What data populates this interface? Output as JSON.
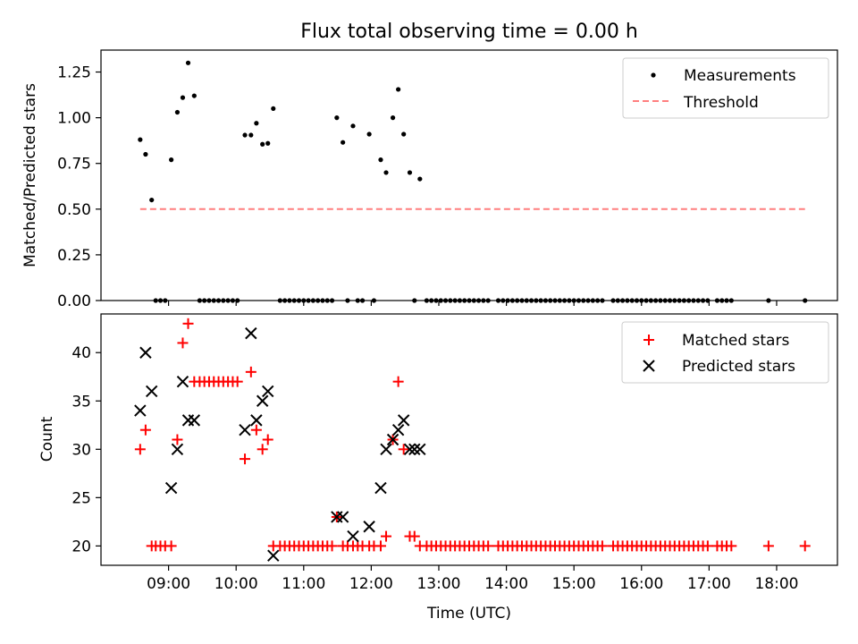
{
  "title": "Flux total observing time = 0.00 h",
  "chart_data": [
    {
      "type": "scatter",
      "panel": "top",
      "ylabel": "Matched/Predicted stars",
      "xlabel": "",
      "ylim": [
        0,
        1.37
      ],
      "yticks": [
        0,
        0.25,
        0.5,
        0.75,
        1.0,
        1.25
      ],
      "ytick_labels": [
        "0.00",
        "0.25",
        "0.50",
        "0.75",
        "1.00",
        "1.25"
      ],
      "legend_position": "top-right",
      "grid": false,
      "series": [
        {
          "name": "Measurements",
          "marker": "dot",
          "color": "#000000",
          "points": [
            [
              8.58,
              0.88
            ],
            [
              8.66,
              0.8
            ],
            [
              8.75,
              0.55
            ],
            [
              8.81,
              0
            ],
            [
              8.88,
              0
            ],
            [
              8.95,
              0
            ],
            [
              9.04,
              0.77
            ],
            [
              9.13,
              1.03
            ],
            [
              9.21,
              1.11
            ],
            [
              9.29,
              1.3
            ],
            [
              9.38,
              1.12
            ],
            [
              9.46,
              0
            ],
            [
              9.53,
              0
            ],
            [
              9.6,
              0
            ],
            [
              9.67,
              0
            ],
            [
              9.74,
              0
            ],
            [
              9.81,
              0
            ],
            [
              9.88,
              0
            ],
            [
              9.95,
              0
            ],
            [
              10.02,
              0
            ],
            [
              10.13,
              0.905
            ],
            [
              10.22,
              0.905
            ],
            [
              10.3,
              0.97
            ],
            [
              10.39,
              0.855
            ],
            [
              10.47,
              0.86
            ],
            [
              10.55,
              1.05
            ],
            [
              10.65,
              0
            ],
            [
              10.72,
              0
            ],
            [
              10.79,
              0
            ],
            [
              10.86,
              0
            ],
            [
              10.93,
              0
            ],
            [
              11.0,
              0
            ],
            [
              11.07,
              0
            ],
            [
              11.14,
              0
            ],
            [
              11.21,
              0
            ],
            [
              11.28,
              0
            ],
            [
              11.35,
              0
            ],
            [
              11.42,
              0
            ],
            [
              11.49,
              1.0
            ],
            [
              11.58,
              0.865
            ],
            [
              11.65,
              0
            ],
            [
              11.73,
              0.955
            ],
            [
              11.8,
              0
            ],
            [
              11.87,
              0
            ],
            [
              11.97,
              0.91
            ],
            [
              12.04,
              0
            ],
            [
              12.14,
              0.77
            ],
            [
              12.22,
              0.7
            ],
            [
              12.32,
              1.0
            ],
            [
              12.4,
              1.155
            ],
            [
              12.48,
              0.91
            ],
            [
              12.57,
              0.7
            ],
            [
              12.64,
              0
            ],
            [
              12.72,
              0.665
            ],
            [
              12.82,
              0
            ],
            [
              12.89,
              0
            ],
            [
              12.96,
              0
            ],
            [
              13.03,
              0
            ],
            [
              13.1,
              0
            ],
            [
              13.17,
              0
            ],
            [
              13.24,
              0
            ],
            [
              13.31,
              0
            ],
            [
              13.38,
              0
            ],
            [
              13.45,
              0
            ],
            [
              13.52,
              0
            ],
            [
              13.59,
              0
            ],
            [
              13.66,
              0
            ],
            [
              13.73,
              0
            ],
            [
              13.88,
              0
            ],
            [
              13.95,
              0
            ],
            [
              14.02,
              0
            ],
            [
              14.09,
              0
            ],
            [
              14.16,
              0
            ],
            [
              14.23,
              0
            ],
            [
              14.3,
              0
            ],
            [
              14.37,
              0
            ],
            [
              14.44,
              0
            ],
            [
              14.51,
              0
            ],
            [
              14.58,
              0
            ],
            [
              14.65,
              0
            ],
            [
              14.72,
              0
            ],
            [
              14.79,
              0
            ],
            [
              14.86,
              0
            ],
            [
              14.93,
              0
            ],
            [
              15.0,
              0
            ],
            [
              15.07,
              0
            ],
            [
              15.14,
              0
            ],
            [
              15.21,
              0
            ],
            [
              15.28,
              0
            ],
            [
              15.35,
              0
            ],
            [
              15.42,
              0
            ],
            [
              15.58,
              0
            ],
            [
              15.65,
              0
            ],
            [
              15.72,
              0
            ],
            [
              15.79,
              0
            ],
            [
              15.86,
              0
            ],
            [
              15.93,
              0
            ],
            [
              16.0,
              0
            ],
            [
              16.07,
              0
            ],
            [
              16.14,
              0
            ],
            [
              16.21,
              0
            ],
            [
              16.28,
              0
            ],
            [
              16.35,
              0
            ],
            [
              16.42,
              0
            ],
            [
              16.49,
              0
            ],
            [
              16.56,
              0
            ],
            [
              16.63,
              0
            ],
            [
              16.7,
              0
            ],
            [
              16.77,
              0
            ],
            [
              16.84,
              0
            ],
            [
              16.91,
              0
            ],
            [
              16.98,
              0
            ],
            [
              17.12,
              0
            ],
            [
              17.19,
              0
            ],
            [
              17.26,
              0
            ],
            [
              17.33,
              0
            ],
            [
              17.88,
              0
            ],
            [
              18.42,
              0
            ]
          ]
        },
        {
          "name": "Threshold",
          "style": "dashed-line",
          "color": "#ff7f7f",
          "points": [
            [
              8.58,
              0.5
            ],
            [
              18.42,
              0.5
            ]
          ]
        }
      ]
    },
    {
      "type": "scatter",
      "panel": "bottom",
      "ylabel": "Count",
      "xlabel": "Time (UTC)",
      "xlim": [
        8.0,
        18.9
      ],
      "ylim": [
        18,
        44
      ],
      "yticks": [
        20,
        25,
        30,
        35,
        40
      ],
      "xticks": [
        9,
        10,
        11,
        12,
        13,
        14,
        15,
        16,
        17,
        18
      ],
      "xtick_labels": [
        "09:00",
        "10:00",
        "11:00",
        "12:00",
        "13:00",
        "14:00",
        "15:00",
        "16:00",
        "17:00",
        "18:00"
      ],
      "legend_position": "top-right",
      "grid": false,
      "series": [
        {
          "name": "Matched stars",
          "marker": "plus",
          "color": "#ff0000",
          "points": [
            [
              8.58,
              30
            ],
            [
              8.66,
              32
            ],
            [
              8.75,
              20
            ],
            [
              8.81,
              20
            ],
            [
              8.88,
              20
            ],
            [
              8.95,
              20
            ],
            [
              9.04,
              20
            ],
            [
              9.13,
              31
            ],
            [
              9.21,
              41
            ],
            [
              9.29,
              43
            ],
            [
              9.38,
              37
            ],
            [
              9.46,
              37
            ],
            [
              9.53,
              37
            ],
            [
              9.6,
              37
            ],
            [
              9.67,
              37
            ],
            [
              9.74,
              37
            ],
            [
              9.81,
              37
            ],
            [
              9.88,
              37
            ],
            [
              9.95,
              37
            ],
            [
              10.02,
              37
            ],
            [
              10.13,
              29
            ],
            [
              10.22,
              38
            ],
            [
              10.3,
              32
            ],
            [
              10.39,
              30
            ],
            [
              10.47,
              31
            ],
            [
              10.55,
              20
            ],
            [
              10.65,
              20
            ],
            [
              10.72,
              20
            ],
            [
              10.79,
              20
            ],
            [
              10.86,
              20
            ],
            [
              10.93,
              20
            ],
            [
              11.0,
              20
            ],
            [
              11.07,
              20
            ],
            [
              11.14,
              20
            ],
            [
              11.21,
              20
            ],
            [
              11.28,
              20
            ],
            [
              11.35,
              20
            ],
            [
              11.42,
              20
            ],
            [
              11.49,
              23
            ],
            [
              11.58,
              20
            ],
            [
              11.65,
              20
            ],
            [
              11.73,
              20
            ],
            [
              11.8,
              20
            ],
            [
              11.87,
              20
            ],
            [
              11.97,
              20
            ],
            [
              12.04,
              20
            ],
            [
              12.14,
              20
            ],
            [
              12.22,
              21
            ],
            [
              12.32,
              31
            ],
            [
              12.4,
              37
            ],
            [
              12.48,
              30
            ],
            [
              12.57,
              21
            ],
            [
              12.64,
              21
            ],
            [
              12.72,
              20
            ],
            [
              12.82,
              20
            ],
            [
              12.89,
              20
            ],
            [
              12.96,
              20
            ],
            [
              13.03,
              20
            ],
            [
              13.1,
              20
            ],
            [
              13.17,
              20
            ],
            [
              13.24,
              20
            ],
            [
              13.31,
              20
            ],
            [
              13.38,
              20
            ],
            [
              13.45,
              20
            ],
            [
              13.52,
              20
            ],
            [
              13.59,
              20
            ],
            [
              13.66,
              20
            ],
            [
              13.73,
              20
            ],
            [
              13.88,
              20
            ],
            [
              13.95,
              20
            ],
            [
              14.02,
              20
            ],
            [
              14.09,
              20
            ],
            [
              14.16,
              20
            ],
            [
              14.23,
              20
            ],
            [
              14.3,
              20
            ],
            [
              14.37,
              20
            ],
            [
              14.44,
              20
            ],
            [
              14.51,
              20
            ],
            [
              14.58,
              20
            ],
            [
              14.65,
              20
            ],
            [
              14.72,
              20
            ],
            [
              14.79,
              20
            ],
            [
              14.86,
              20
            ],
            [
              14.93,
              20
            ],
            [
              15.0,
              20
            ],
            [
              15.07,
              20
            ],
            [
              15.14,
              20
            ],
            [
              15.21,
              20
            ],
            [
              15.28,
              20
            ],
            [
              15.35,
              20
            ],
            [
              15.42,
              20
            ],
            [
              15.58,
              20
            ],
            [
              15.65,
              20
            ],
            [
              15.72,
              20
            ],
            [
              15.79,
              20
            ],
            [
              15.86,
              20
            ],
            [
              15.93,
              20
            ],
            [
              16.0,
              20
            ],
            [
              16.07,
              20
            ],
            [
              16.14,
              20
            ],
            [
              16.21,
              20
            ],
            [
              16.28,
              20
            ],
            [
              16.35,
              20
            ],
            [
              16.42,
              20
            ],
            [
              16.49,
              20
            ],
            [
              16.56,
              20
            ],
            [
              16.63,
              20
            ],
            [
              16.7,
              20
            ],
            [
              16.77,
              20
            ],
            [
              16.84,
              20
            ],
            [
              16.91,
              20
            ],
            [
              16.98,
              20
            ],
            [
              17.12,
              20
            ],
            [
              17.19,
              20
            ],
            [
              17.26,
              20
            ],
            [
              17.33,
              20
            ],
            [
              17.88,
              20
            ],
            [
              18.42,
              20
            ]
          ]
        },
        {
          "name": "Predicted stars",
          "marker": "x",
          "color": "#000000",
          "points": [
            [
              8.58,
              34
            ],
            [
              8.66,
              40
            ],
            [
              8.75,
              36
            ],
            [
              9.04,
              26
            ],
            [
              9.13,
              30
            ],
            [
              9.21,
              37
            ],
            [
              9.29,
              33
            ],
            [
              9.38,
              33
            ],
            [
              10.13,
              32
            ],
            [
              10.22,
              42
            ],
            [
              10.3,
              33
            ],
            [
              10.39,
              35
            ],
            [
              10.47,
              36
            ],
            [
              10.55,
              19
            ],
            [
              11.49,
              23
            ],
            [
              11.58,
              23
            ],
            [
              11.73,
              21
            ],
            [
              11.97,
              22
            ],
            [
              12.14,
              26
            ],
            [
              12.22,
              30
            ],
            [
              12.32,
              31
            ],
            [
              12.4,
              32
            ],
            [
              12.48,
              33
            ],
            [
              12.57,
              30
            ],
            [
              12.64,
              30
            ],
            [
              12.72,
              30
            ]
          ]
        }
      ]
    }
  ]
}
